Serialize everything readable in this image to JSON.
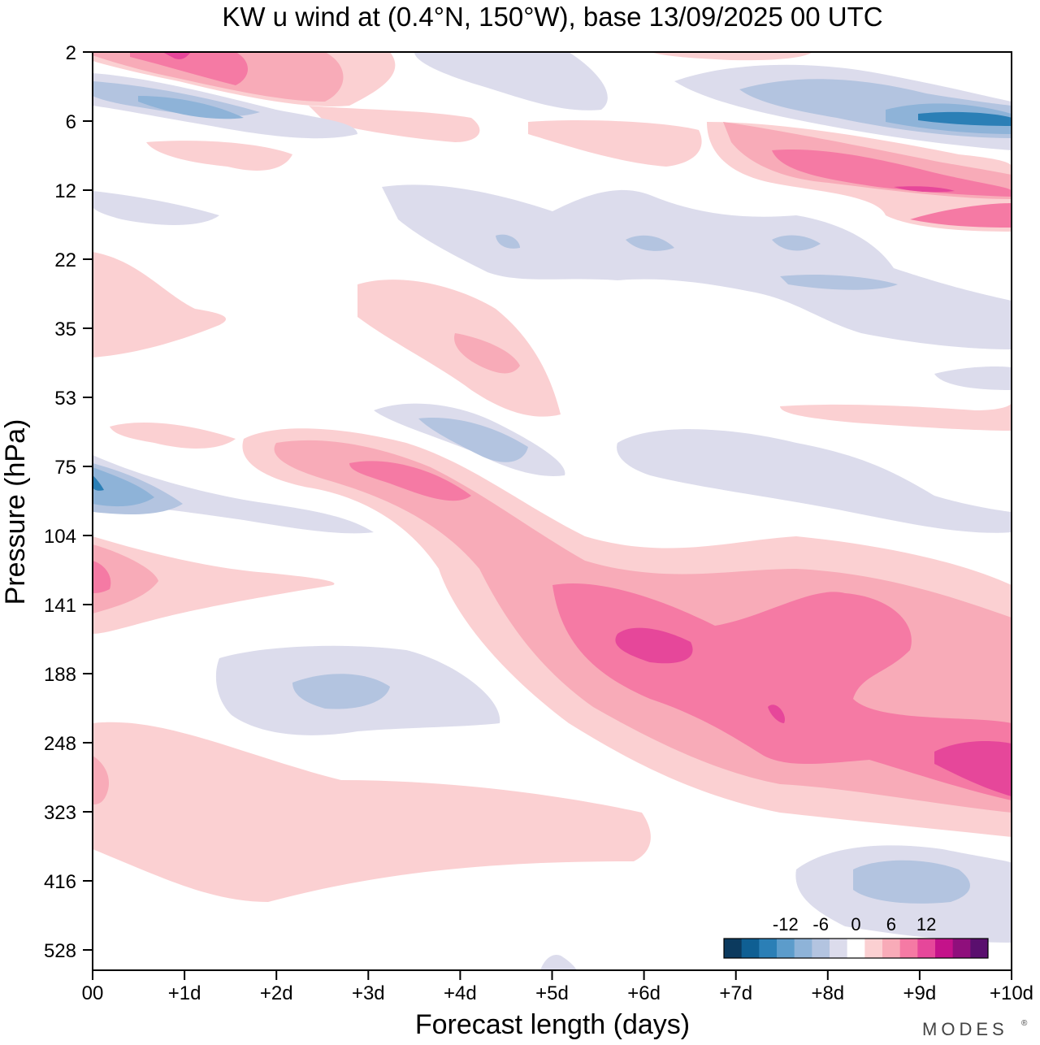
{
  "chart_data": {
    "type": "heatmap",
    "title": "KW u wind at (0.4°N, 150°W),  base 13/09/2025  00 UTC",
    "xlabel": "Forecast length (days)",
    "ylabel": "Pressure (hPa)",
    "x_ticks": [
      "00",
      "+1d",
      "+2d",
      "+3d",
      "+4d",
      "+5d",
      "+6d",
      "+7d",
      "+8d",
      "+9d",
      "+10d"
    ],
    "y_ticks": [
      "2",
      "6",
      "12",
      "22",
      "35",
      "53",
      "75",
      "104",
      "141",
      "188",
      "248",
      "323",
      "416",
      "528"
    ],
    "xlim_days": [
      0,
      10
    ],
    "colorbar": {
      "tick_labels": [
        "-12",
        "-6",
        "0",
        "6",
        "12"
      ],
      "levels": [
        -21,
        -18,
        -15,
        -12,
        -9,
        -6,
        -3,
        0,
        3,
        6,
        9,
        12,
        15,
        18,
        21
      ],
      "colors": [
        "#0c3a5e",
        "#0f5f93",
        "#2b7fb6",
        "#5c9ccb",
        "#8eb3d8",
        "#b3c4e0",
        "#dcdcec",
        "#ffffff",
        "#fbd0d2",
        "#f8abb8",
        "#f57aa4",
        "#e6479a",
        "#c4128a",
        "#8f0f7c",
        "#5a0f6e"
      ]
    },
    "features": [
      {
        "name": "Deep positive jet descending from ~75 hPa at +3d to 141-250 hPa by +6..+10d",
        "peak_value": 15,
        "days": [
          2.5,
          10
        ],
        "pressure_hpa": [
          75,
          300
        ]
      },
      {
        "name": "Positive band 8-12 hPa after +7d",
        "peak_value": 15,
        "days": [
          7,
          10
        ],
        "pressure_hpa": [
          8,
          14
        ]
      },
      {
        "name": "Negative band ~6 hPa",
        "peak_value": -12,
        "days": [
          0,
          10
        ],
        "pressure_hpa": [
          3,
          7
        ]
      },
      {
        "name": "Negative core ~80 hPa at day 0",
        "peak_value": -12,
        "days": [
          0,
          1
        ],
        "pressure_hpa": [
          65,
          95
        ]
      },
      {
        "name": "Negative region ~200 hPa",
        "peak_value": -6,
        "days": [
          1.5,
          4.5
        ],
        "pressure_hpa": [
          160,
          240
        ]
      },
      {
        "name": "Negative region ~450 hPa",
        "peak_value": -6,
        "days": [
          7.5,
          10
        ],
        "pressure_hpa": [
          380,
          500
        ]
      },
      {
        "name": "Weak positive 250-416 hPa",
        "peak_value": 3,
        "days": [
          0,
          6
        ],
        "pressure_hpa": [
          250,
          416
        ]
      }
    ]
  },
  "watermark": "MODES"
}
